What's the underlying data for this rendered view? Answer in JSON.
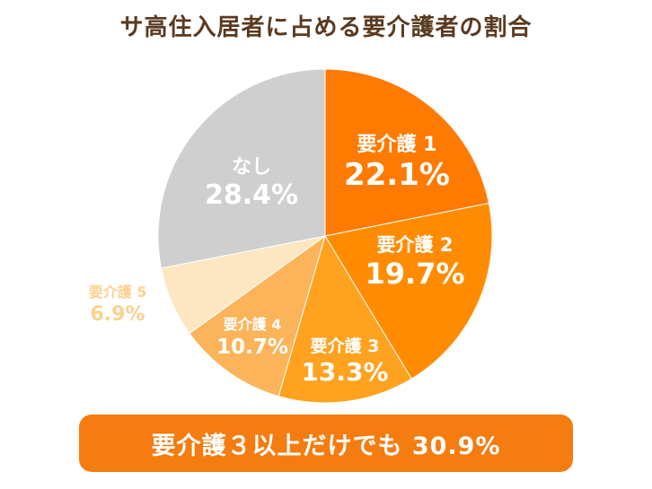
{
  "chart_data": {
    "type": "pie",
    "title": "サ高住入居者に占める要介護者の割合",
    "slices": [
      {
        "name": "要介護 1",
        "value": 22.1,
        "label": "22.1%",
        "color": "#ff7a00",
        "text_color": "#ffffff"
      },
      {
        "name": "要介護 2",
        "value": 19.7,
        "label": "19.7%",
        "color": "#ff8c00",
        "text_color": "#ffffff"
      },
      {
        "name": "要介護 3",
        "value": 13.3,
        "label": "13.3%",
        "color": "#ffa21f",
        "text_color": "#ffffff"
      },
      {
        "name": "要介護 4",
        "value": 10.7,
        "label": "10.7%",
        "color": "#fbb45a",
        "text_color": "#ffffff"
      },
      {
        "name": "要介護 5",
        "value": 6.9,
        "label": "6.9%",
        "color": "#fde7c2",
        "text_color": "#fbd28f"
      },
      {
        "name": "なし",
        "value": 28.4,
        "label": "28.4%",
        "color": "#cfcfcf",
        "text_color": "#ffffff"
      }
    ]
  },
  "banner": {
    "text": "要介護３以上だけでも 30.9%",
    "color": "#f47c10"
  }
}
